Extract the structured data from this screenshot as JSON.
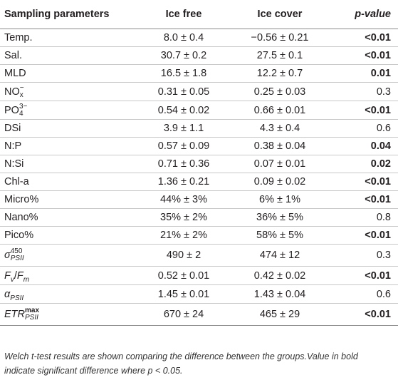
{
  "table": {
    "headers": [
      "Sampling parameters",
      "Ice free",
      "Ice cover",
      "p-value"
    ],
    "rows": [
      {
        "param": "Temp.",
        "ice_free": "8.0 ± 0.4",
        "ice_cover": "−0.56 ± 0.21",
        "p": "<0.01",
        "bold": true
      },
      {
        "param": "Sal.",
        "ice_free": "30.7 ± 0.2",
        "ice_cover": "27.5 ± 0.1",
        "p": "<0.01",
        "bold": true
      },
      {
        "param": "MLD",
        "ice_free": "16.5 ± 1.8",
        "ice_cover": "12.2 ± 0.7",
        "p": "0.01",
        "bold": true
      },
      {
        "param_base": "NO",
        "param_sup": "−",
        "param_sub": "x",
        "ice_free": "0.31 ± 0.05",
        "ice_cover": "0.25 ± 0.03",
        "p": "0.3",
        "bold": false
      },
      {
        "param_base": "PO",
        "param_sup": "3−",
        "param_sub": "4",
        "ice_free": "0.54 ± 0.02",
        "ice_cover": "0.66 ± 0.01",
        "p": "<0.01",
        "bold": true
      },
      {
        "param": "DSi",
        "ice_free": "3.9 ± 1.1",
        "ice_cover": "4.3 ± 0.4",
        "p": "0.6",
        "bold": false
      },
      {
        "param": "N:P",
        "ice_free": "0.57 ± 0.09",
        "ice_cover": "0.38 ± 0.04",
        "p": "0.04",
        "bold": true
      },
      {
        "param": "N:Si",
        "ice_free": "0.71 ± 0.36",
        "ice_cover": "0.07 ± 0.01",
        "p": "0.02",
        "bold": true
      },
      {
        "param": "Chl-a",
        "ice_free": "1.36 ± 0.21",
        "ice_cover": "0.09 ± 0.02",
        "p": "<0.01",
        "bold": true
      },
      {
        "param": "Micro%",
        "ice_free": "44% ± 3%",
        "ice_cover": "6% ± 1%",
        "p": "<0.01",
        "bold": true
      },
      {
        "param": "Nano%",
        "ice_free": "35% ± 2%",
        "ice_cover": "36% ± 5%",
        "p": "0.8",
        "bold": false
      },
      {
        "param": "Pico%",
        "ice_free": "21% ± 2%",
        "ice_cover": "58% ± 5%",
        "p": "<0.01",
        "bold": true
      },
      {
        "param_base": "σ",
        "param_sup": "450",
        "param_sub": "PSII",
        "ice_free": "490 ± 2",
        "ice_cover": "474 ± 12",
        "p": "0.3",
        "bold": false
      },
      {
        "param_f": "F",
        "param_fsub": "v",
        "param_slash": "/",
        "param_m": "F",
        "param_msub": "m",
        "ice_free": "0.52 ± 0.01",
        "ice_cover": "0.42 ± 0.02",
        "p": "<0.01",
        "bold": true
      },
      {
        "param_base": "α",
        "param_sub": "PSII",
        "ice_free": "1.45 ± 0.01",
        "ice_cover": "1.43 ± 0.04",
        "p": "0.6",
        "bold": false
      },
      {
        "param_base": "ETR",
        "param_sup": "max",
        "param_sub": "PSII",
        "ice_free": "670 ± 24",
        "ice_cover": "465 ± 29",
        "p": "<0.01",
        "bold": true
      }
    ]
  },
  "caption": {
    "line1": "Welch t-test results are shown comparing the difference between the groups.Value in bold",
    "line2": "indicate significant difference where p < 0.05."
  }
}
